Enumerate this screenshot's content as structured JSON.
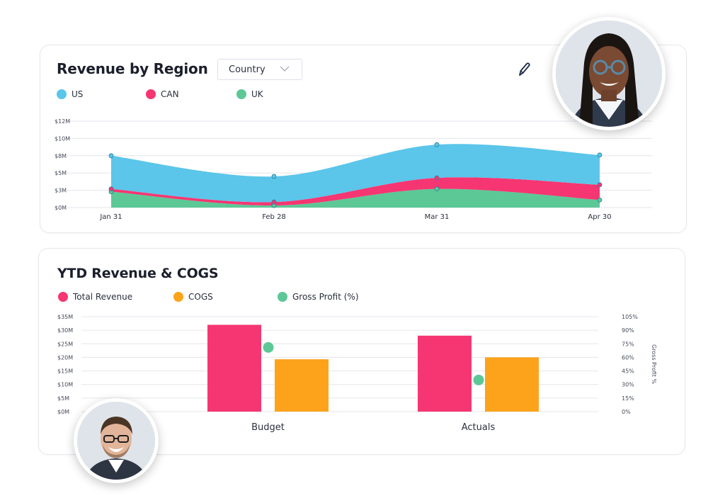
{
  "revenue_card": {
    "title": "Revenue by Region",
    "dropdown_value": "Country",
    "edit_icon": "pencil-icon"
  },
  "cogs_card": {
    "title": "YTD Revenue & COGS"
  },
  "colors": {
    "us": "#5bc5ea",
    "can": "#f53672",
    "uk": "#5cc896",
    "revenue": "#f53672",
    "cogs": "#fca31b",
    "profit": "#5cc896"
  },
  "chart_data": [
    {
      "type": "area",
      "stacked": true,
      "legend_position": "top-left",
      "grid": true,
      "x": [
        "Jan 31",
        "Feb 28",
        "Mar 31",
        "Apr 30"
      ],
      "y_ticks": [
        "$0M",
        "$3M",
        "$5M",
        "$8M",
        "$10M",
        "$12M"
      ],
      "ylim": [
        0,
        12.5
      ],
      "series": [
        {
          "name": "UK",
          "values": [
            2.3,
            0.3,
            2.7,
            1.1
          ]
        },
        {
          "name": "CAN",
          "values": [
            0.4,
            0.5,
            1.6,
            2.2
          ]
        },
        {
          "name": "US",
          "values": [
            4.8,
            3.7,
            4.8,
            4.3
          ]
        }
      ]
    },
    {
      "type": "bar",
      "legend_position": "top-left",
      "grid": true,
      "categories": [
        "Budget",
        "Actuals"
      ],
      "y_ticks": [
        "$0M",
        "$5M",
        "$10M",
        "$15M",
        "$20M",
        "$25M",
        "$30M",
        "$35M"
      ],
      "ylim": [
        0,
        35
      ],
      "y2_ticks": [
        "0%",
        "15%",
        "30%",
        "45%",
        "60%",
        "75%",
        "90%",
        "105%"
      ],
      "y2lim": [
        0,
        105
      ],
      "y2label": "Gross Profit %",
      "series": [
        {
          "name": "Total  Revenue",
          "values": [
            32,
            28
          ]
        },
        {
          "name": "COGS",
          "values": [
            19.3,
            20
          ]
        },
        {
          "name": "Gross Profit (%)",
          "values": [
            71,
            35
          ],
          "axis": "right"
        }
      ]
    }
  ]
}
